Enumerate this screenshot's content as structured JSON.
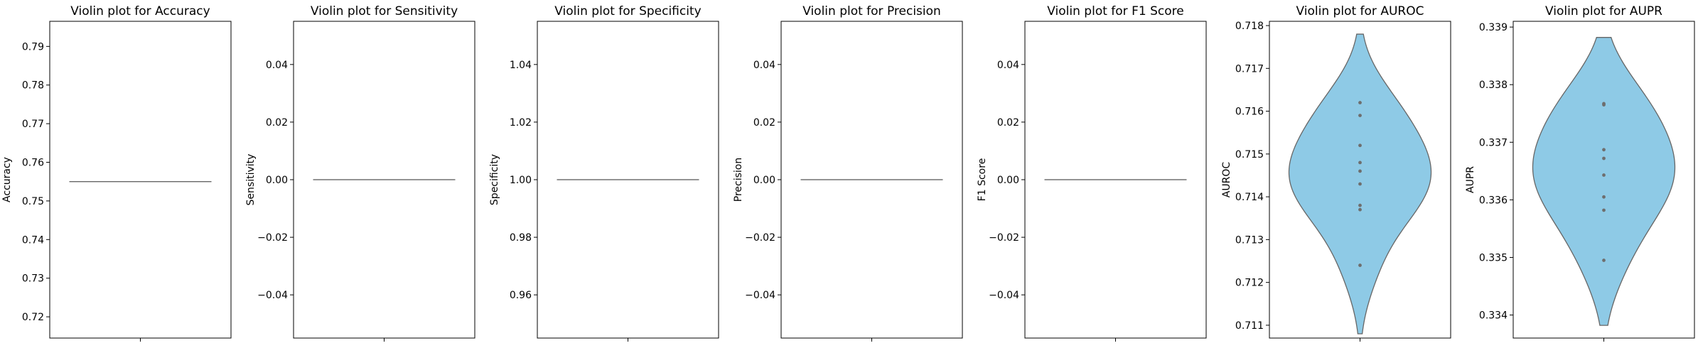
{
  "chart_data": [
    {
      "type": "violin",
      "title": "Violin plot for Accuracy",
      "ylabel": "Accuracy",
      "ylim": [
        0.7145,
        0.7965
      ],
      "yticks": [
        0.72,
        0.73,
        0.74,
        0.75,
        0.76,
        0.77,
        0.78,
        0.79
      ],
      "yticklabels": [
        "0.72",
        "0.73",
        "0.74",
        "0.75",
        "0.76",
        "0.77",
        "0.78",
        "0.79"
      ],
      "values": [
        0.755,
        0.755,
        0.755,
        0.755,
        0.755,
        0.755,
        0.755,
        0.755,
        0.755,
        0.755
      ],
      "degenerate": true,
      "color": "#8ecae6"
    },
    {
      "type": "violin",
      "title": "Violin plot for Sensitivity",
      "ylabel": "Sensitivity",
      "ylim": [
        -0.055,
        0.055
      ],
      "yticks": [
        -0.04,
        -0.02,
        0.0,
        0.02,
        0.04
      ],
      "yticklabels": [
        "−0.04",
        "−0.02",
        "0.00",
        "0.02",
        "0.04"
      ],
      "values": [
        0,
        0,
        0,
        0,
        0,
        0,
        0,
        0,
        0,
        0
      ],
      "degenerate": true,
      "color": "#8ecae6"
    },
    {
      "type": "violin",
      "title": "Violin plot for Specificity",
      "ylabel": "Specificity",
      "ylim": [
        0.945,
        1.055
      ],
      "yticks": [
        0.96,
        0.98,
        1.0,
        1.02,
        1.04
      ],
      "yticklabels": [
        "0.96",
        "0.98",
        "1.00",
        "1.02",
        "1.04"
      ],
      "values": [
        1,
        1,
        1,
        1,
        1,
        1,
        1,
        1,
        1,
        1
      ],
      "degenerate": true,
      "color": "#8ecae6"
    },
    {
      "type": "violin",
      "title": "Violin plot for Precision",
      "ylabel": "Precision",
      "ylim": [
        -0.055,
        0.055
      ],
      "yticks": [
        -0.04,
        -0.02,
        0.0,
        0.02,
        0.04
      ],
      "yticklabels": [
        "−0.04",
        "−0.02",
        "0.00",
        "0.02",
        "0.04"
      ],
      "values": [
        0,
        0,
        0,
        0,
        0,
        0,
        0,
        0,
        0,
        0
      ],
      "degenerate": true,
      "color": "#8ecae6"
    },
    {
      "type": "violin",
      "title": "Violin plot for F1 Score",
      "ylabel": "F1 Score",
      "ylim": [
        -0.055,
        0.055
      ],
      "yticks": [
        -0.04,
        -0.02,
        0.0,
        0.02,
        0.04
      ],
      "yticklabels": [
        "−0.04",
        "−0.02",
        "0.00",
        "0.02",
        "0.04"
      ],
      "values": [
        0,
        0,
        0,
        0,
        0,
        0,
        0,
        0,
        0,
        0
      ],
      "degenerate": true,
      "color": "#8ecae6"
    },
    {
      "type": "violin",
      "title": "Violin plot for AUROC",
      "ylabel": "AUROC",
      "ylim": [
        0.7107,
        0.7181
      ],
      "yticks": [
        0.711,
        0.712,
        0.713,
        0.714,
        0.715,
        0.716,
        0.717,
        0.718
      ],
      "yticklabels": [
        "0.711",
        "0.712",
        "0.713",
        "0.714",
        "0.715",
        "0.716",
        "0.717",
        "0.718"
      ],
      "values": [
        0.7162,
        0.7159,
        0.7152,
        0.7148,
        0.7146,
        0.7143,
        0.7138,
        0.7137,
        0.7124
      ],
      "violin_range": [
        0.7108,
        0.7178
      ],
      "color": "#8ecae6"
    },
    {
      "type": "violin",
      "title": "Violin plot for AUPR",
      "ylabel": "AUPR",
      "ylim": [
        0.3336,
        0.3391
      ],
      "yticks": [
        0.334,
        0.335,
        0.336,
        0.337,
        0.338,
        0.339
      ],
      "yticklabels": [
        "0.334",
        "0.335",
        "0.336",
        "0.337",
        "0.338",
        "0.339"
      ],
      "values": [
        0.33767,
        0.33765,
        0.33687,
        0.33672,
        0.33643,
        0.33605,
        0.33582,
        0.33495
      ],
      "violin_range": [
        0.33382,
        0.33882
      ],
      "color": "#8ecae6"
    }
  ]
}
